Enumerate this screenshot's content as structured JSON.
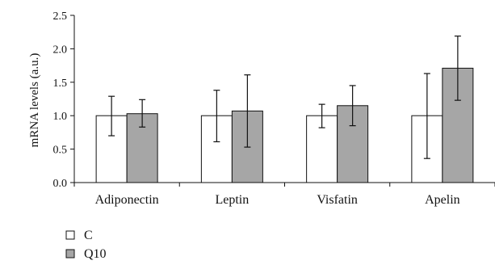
{
  "chart_data": {
    "type": "bar",
    "title": "",
    "xlabel": "",
    "ylabel": "mRNA levels (a.u.)",
    "ylim": [
      0,
      2.5
    ],
    "yticks": [
      "0.0",
      "0.5",
      "1.0",
      "1.5",
      "2.0",
      "2.5"
    ],
    "grid": false,
    "legend_position": "bottom-left",
    "categories": [
      "Adiponectin",
      "Leptin",
      "Visfatin",
      "Apelin"
    ],
    "series": [
      {
        "name": "C",
        "color": "#ffffff",
        "values": [
          1.0,
          1.0,
          1.0,
          1.0
        ],
        "error_low": [
          0.7,
          0.61,
          0.82,
          0.36
        ],
        "error_high": [
          1.29,
          1.38,
          1.17,
          1.63
        ]
      },
      {
        "name": "Q10",
        "color": "#a6a6a6",
        "values": [
          1.03,
          1.07,
          1.15,
          1.71
        ],
        "error_low": [
          0.83,
          0.53,
          0.85,
          1.23
        ],
        "error_high": [
          1.24,
          1.61,
          1.45,
          2.19
        ]
      }
    ]
  }
}
